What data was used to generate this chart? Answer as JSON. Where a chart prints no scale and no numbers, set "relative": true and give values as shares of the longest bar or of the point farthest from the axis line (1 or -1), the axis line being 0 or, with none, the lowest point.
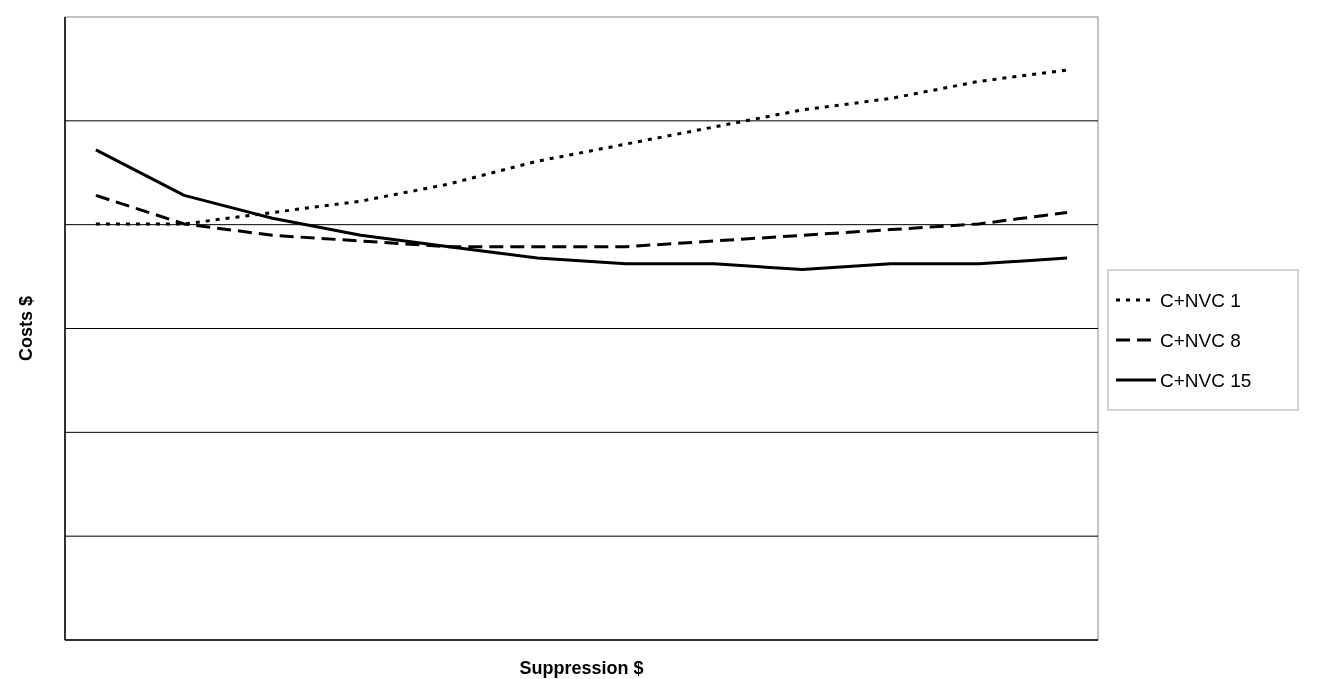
{
  "chart_data": {
    "type": "line",
    "relative": true,
    "xlabel": "Suppression $",
    "ylabel": "Costs $",
    "categories": [
      null,
      null,
      null,
      null,
      null,
      null,
      null,
      null,
      null,
      null,
      null,
      null
    ],
    "grid": "y",
    "legend": "right",
    "series": [
      {
        "name": "C+NVC 1",
        "color": "#000000",
        "line_style": "dotted",
        "values": [
          0.73,
          0.73,
          0.75,
          0.77,
          0.8,
          0.84,
          0.87,
          0.9,
          0.93,
          0.95,
          0.98,
          1
        ]
      },
      {
        "name": "C+NVC 8",
        "color": "#000000",
        "line_style": "dashed",
        "values": [
          0.78,
          0.73,
          0.71,
          0.7,
          0.69,
          0.69,
          0.69,
          0.7,
          0.71,
          0.72,
          0.73,
          0.75
        ]
      },
      {
        "name": "C+NVC 15",
        "color": "#000000",
        "line_style": "solid",
        "values": [
          0.86,
          0.78,
          0.74,
          0.71,
          0.69,
          0.67,
          0.66,
          0.66,
          0.65,
          0.66,
          0.66,
          0.67
        ]
      }
    ]
  }
}
